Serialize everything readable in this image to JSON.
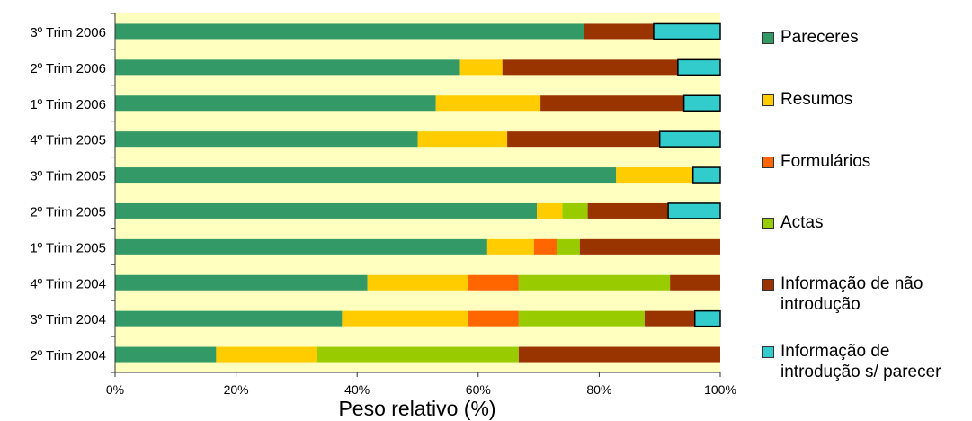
{
  "chart_data": {
    "type": "bar",
    "orientation": "horizontal",
    "stacked": "percent",
    "xlabel": "Peso relativo (%)",
    "ylabel": "",
    "xlim": [
      0,
      100
    ],
    "x_ticks": [
      "0%",
      "20%",
      "40%",
      "60%",
      "80%",
      "100%"
    ],
    "grid": false,
    "plot_background": "#FFFFC0",
    "legend_position": "right",
    "categories": [
      "3º Trim 2006",
      "2º Trim 2006",
      "1º Trim 2006",
      "4º Trim 2005",
      "3º Trim 2005",
      "2º Trim 2005",
      "1º Trim 2005",
      "4º Trim 2004",
      "3º Trim 2004",
      "2º Trim 2004"
    ],
    "series": [
      {
        "name": "Pareceres",
        "color": "#339966",
        "values": [
          77.5,
          57,
          53,
          50,
          82.8,
          69.7,
          61.5,
          41.7,
          37.5,
          16.7
        ]
      },
      {
        "name": "Resumos",
        "color": "#FFCC00",
        "values": [
          0,
          7,
          17.3,
          14.8,
          12.7,
          4.2,
          7.7,
          16.6,
          20.8,
          16.6
        ]
      },
      {
        "name": "Formulários",
        "color": "#FF6600",
        "values": [
          0,
          0,
          0,
          0,
          0,
          0,
          3.8,
          8.4,
          8.4,
          0
        ]
      },
      {
        "name": "Actas",
        "color": "#99CC00",
        "values": [
          0,
          0,
          0,
          0,
          0,
          4.2,
          3.8,
          25,
          20.8,
          33.4
        ]
      },
      {
        "name": "Informação de não\nintrodução",
        "color": "#993300",
        "values": [
          11.5,
          29,
          23.7,
          25.2,
          0,
          13.3,
          23.2,
          8.3,
          8.3,
          33.3
        ]
      },
      {
        "name": "Informação de\nintrodução s/ parecer",
        "color": "#33CCCC",
        "values": [
          11,
          7,
          6,
          10,
          4.5,
          8.6,
          0,
          0,
          4.2,
          0
        ]
      }
    ]
  }
}
